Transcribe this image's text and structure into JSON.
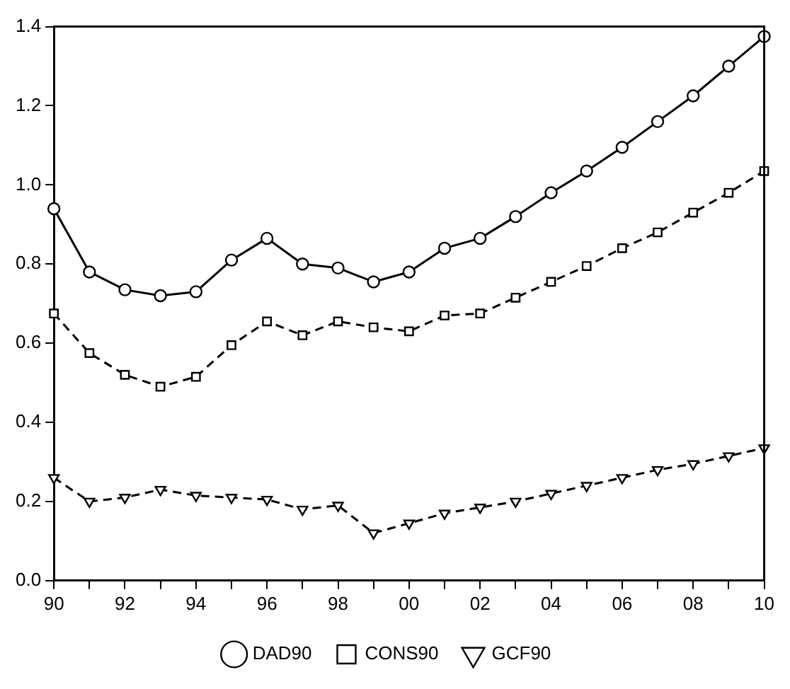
{
  "chart_data": {
    "type": "line",
    "categories": [
      "90",
      null,
      "92",
      null,
      "94",
      null,
      "96",
      null,
      "98",
      null,
      "00",
      null,
      "02",
      null,
      "04",
      null,
      "06",
      null,
      "08",
      null,
      "10"
    ],
    "series": [
      {
        "name": "DAD90",
        "color": "#000000",
        "marker": "circle",
        "line_style": "solid",
        "values": [
          0.94,
          0.78,
          0.735,
          0.72,
          0.73,
          0.81,
          0.865,
          0.8,
          0.79,
          0.755,
          0.78,
          0.84,
          0.865,
          0.92,
          0.98,
          1.035,
          1.095,
          1.16,
          1.225,
          1.3,
          1.375
        ]
      },
      {
        "name": "CONS90",
        "color": "#000000",
        "marker": "square",
        "line_style": "dashed",
        "values": [
          0.675,
          0.575,
          0.52,
          0.49,
          0.515,
          0.595,
          0.655,
          0.62,
          0.655,
          0.64,
          0.63,
          0.67,
          0.675,
          0.715,
          0.755,
          0.795,
          0.84,
          0.88,
          0.93,
          0.98,
          1.035
        ]
      },
      {
        "name": "GCF90",
        "color": "#000000",
        "marker": "triangle",
        "line_style": "dashed",
        "values": [
          0.26,
          0.2,
          0.21,
          0.23,
          0.215,
          0.21,
          0.205,
          0.18,
          0.19,
          0.12,
          0.145,
          0.17,
          0.185,
          0.2,
          0.22,
          0.24,
          0.26,
          0.28,
          0.295,
          0.315,
          0.335
        ]
      }
    ],
    "ylim": [
      0,
      1.4
    ],
    "yticks": [
      {
        "value": 0,
        "label": "0.0"
      },
      {
        "value": 0.2,
        "label": "0.2"
      },
      {
        "value": 0.4,
        "label": "0.4"
      },
      {
        "value": 0.6,
        "label": "0.6"
      },
      {
        "value": 0.8,
        "label": "0.8"
      },
      {
        "value": 1,
        "label": "1.0"
      },
      {
        "value": 1.2,
        "label": "1.2"
      },
      {
        "value": 1.4,
        "label": "1.4"
      }
    ],
    "grid": false,
    "legend": "bottom"
  }
}
